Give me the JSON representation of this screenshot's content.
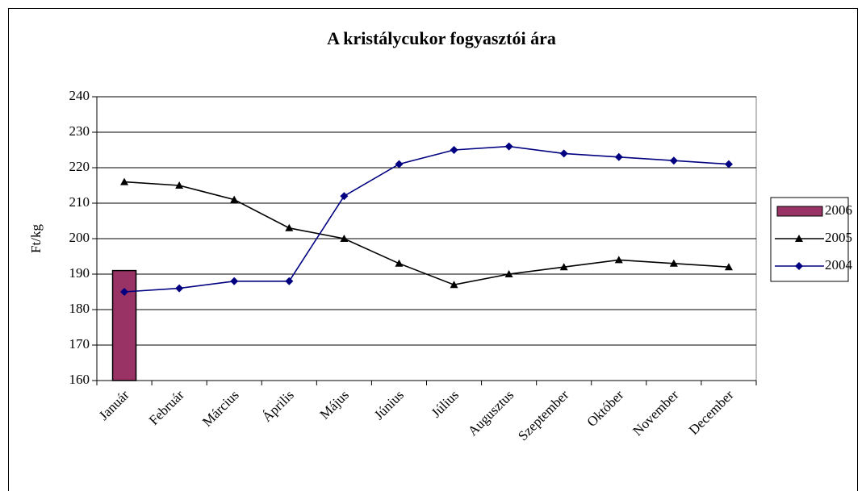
{
  "chart_data": {
    "type": "line",
    "title": "A kristálycukor fogyasztói ára",
    "y_label": "Ft/kg",
    "categories": [
      "Január",
      "Február",
      "Március",
      "Április",
      "Május",
      "Június",
      "Július",
      "Augusztus",
      "Szeptember",
      "Október",
      "November",
      "December"
    ],
    "series": [
      {
        "name": "2006",
        "type": "bar",
        "color": "#993366",
        "values": [
          191,
          null,
          null,
          null,
          null,
          null,
          null,
          null,
          null,
          null,
          null,
          null
        ]
      },
      {
        "name": "2005",
        "type": "line",
        "marker": "triangle",
        "color": "#000000",
        "values": [
          216,
          215,
          211,
          203,
          200,
          193,
          187,
          190,
          192,
          194,
          193,
          192
        ]
      },
      {
        "name": "2004",
        "type": "line",
        "marker": "diamond",
        "color": "#000080",
        "values": [
          185,
          186,
          188,
          188,
          212,
          221,
          225,
          226,
          224,
          223,
          222,
          221
        ]
      }
    ],
    "ylim": [
      160,
      240
    ],
    "yticks": [
      160,
      170,
      180,
      190,
      200,
      210,
      220,
      230,
      240
    ],
    "grid": true,
    "legend": "right"
  }
}
